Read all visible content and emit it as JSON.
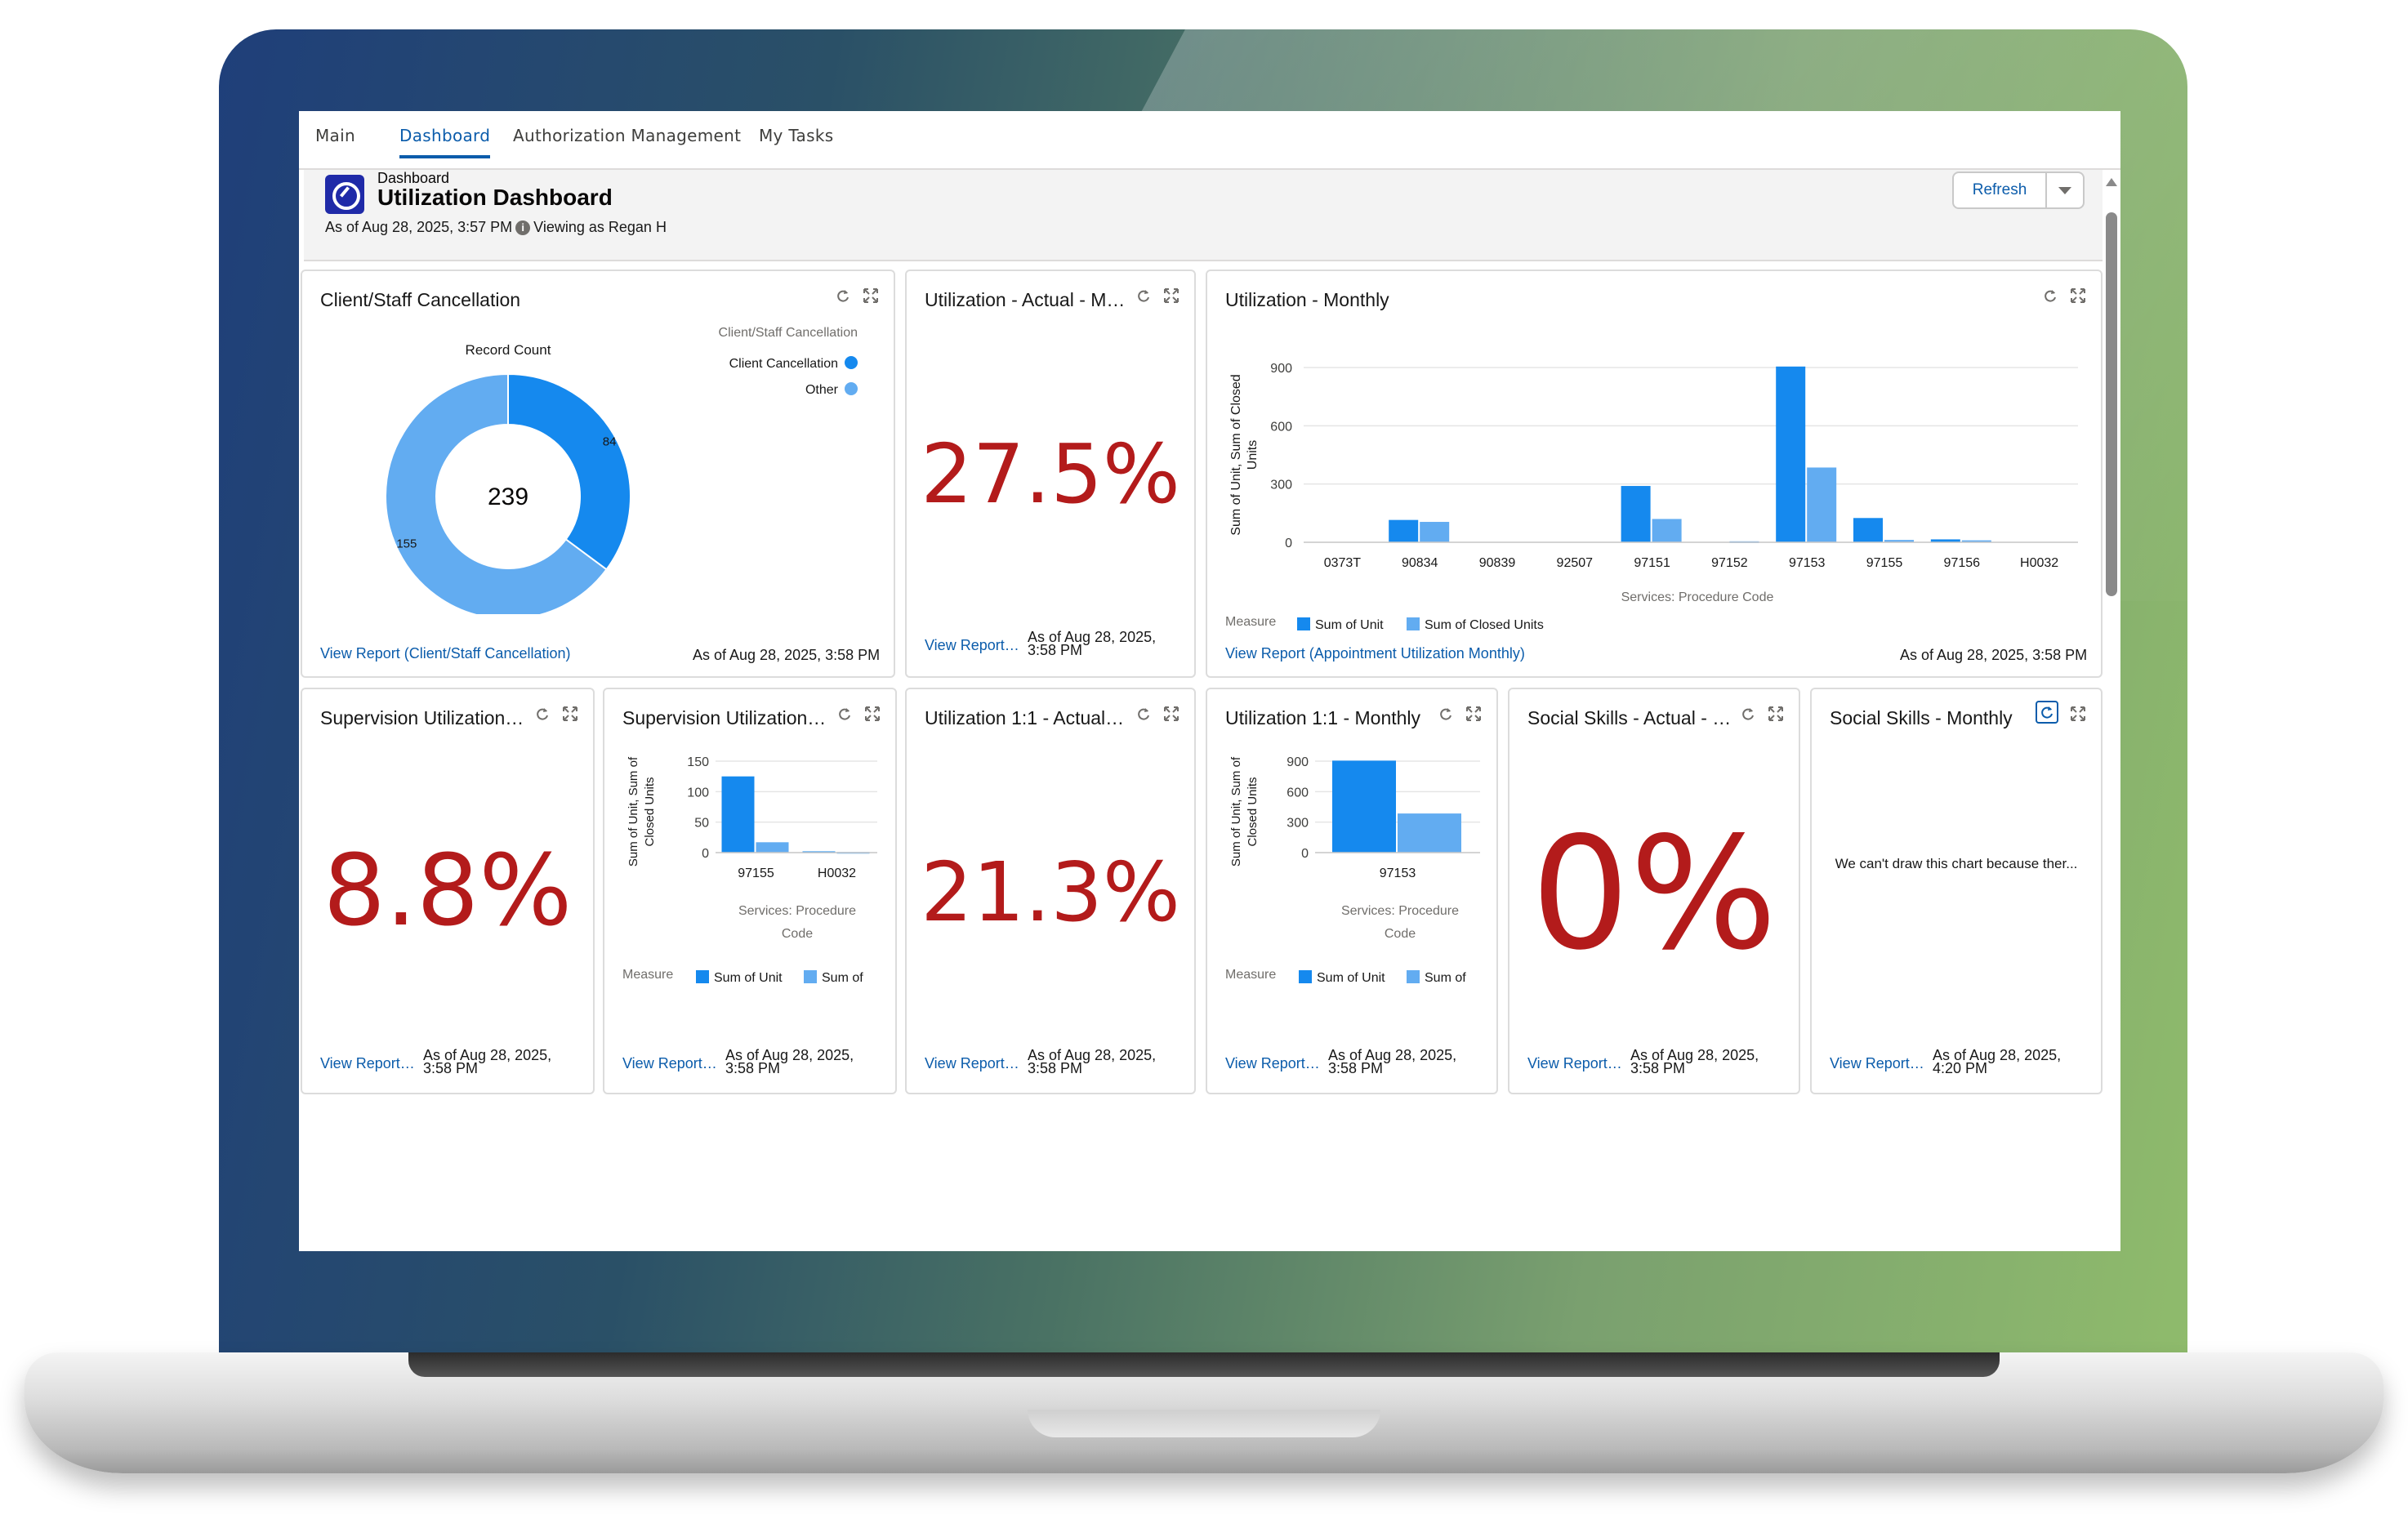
{
  "tabs": [
    {
      "label": "Main",
      "active": false
    },
    {
      "label": "Dashboard",
      "active": true
    },
    {
      "label": "Authorization Management",
      "active": false
    },
    {
      "label": "My Tasks",
      "active": false
    }
  ],
  "header": {
    "eyebrow": "Dashboard",
    "title": "Utilization Dashboard",
    "as_of": "As of Aug 28, 2025, 3:57 PM",
    "info_glyph": "i",
    "viewing_as": "Viewing as Regan H",
    "refresh_label": "Refresh"
  },
  "colors": {
    "primary_series": "#1589ee",
    "secondary_series": "#62acf1",
    "metric_red": "#b31b1b",
    "link_blue": "#0b5cab"
  },
  "cards": {
    "cancellation": {
      "title": "Client/Staff Cancellation",
      "view_report": "View Report (Client/Staff Cancellation)",
      "as_of": "As of Aug 28, 2025, 3:58 PM"
    },
    "util_actual": {
      "title": "Utilization - Actual - Mon...",
      "metric": "27.5%",
      "view_report": "View Report (...",
      "as_of_1": "As of Aug 28, 2025,",
      "as_of_2": "3:58 PM"
    },
    "util_monthly": {
      "title": "Utilization - Monthly",
      "view_report": "View Report (Appointment Utilization Monthly)",
      "as_of": "As of Aug 28, 2025, 3:58 PM"
    },
    "supervision_actual": {
      "title": "Supervision Utilization - ...",
      "metric": "8.8%",
      "view_report": "View Report (...",
      "as_of_1": "As of Aug 28, 2025,",
      "as_of_2": "3:58 PM"
    },
    "supervision_chart": {
      "title": "Supervision Utilization - ...",
      "view_report": "View Report (...",
      "as_of_1": "As of Aug 28, 2025,",
      "as_of_2": "3:58 PM"
    },
    "util_11_actual": {
      "title": "Utilization 1:1 - Actual - ...",
      "metric": "21.3%",
      "view_report": "View Report (...",
      "as_of_1": "As of Aug 28, 2025,",
      "as_of_2": "3:58 PM"
    },
    "util_11_monthly": {
      "title": "Utilization 1:1 - Monthly",
      "view_report": "View Report (...",
      "as_of_1": "As of Aug 28, 2025,",
      "as_of_2": "3:58 PM"
    },
    "social_actual": {
      "title": "Social Skills - Actual - M...",
      "metric": "0%",
      "view_report": "View Report (...",
      "as_of_1": "As of Aug 28, 2025,",
      "as_of_2": "3:58 PM"
    },
    "social_monthly": {
      "title": "Social Skills - Monthly",
      "message": "We can't draw this chart because ther...",
      "view_report": "View Report (...",
      "as_of_1": "As of Aug 28, 2025,",
      "as_of_2": "4:20 PM"
    }
  },
  "chart_data": [
    {
      "id": "cancellation",
      "type": "pie",
      "title": "Record Count",
      "center_label": "239",
      "legend_title": "Client/Staff Cancellation",
      "legend_position": "top-right",
      "slices": [
        {
          "label": "Client Cancellation",
          "value": 84,
          "display": "84",
          "color": "#1589ee"
        },
        {
          "label": "Other",
          "value": 155,
          "display": "155",
          "color": "#62acf1"
        }
      ]
    },
    {
      "id": "util_monthly",
      "type": "bar",
      "xlabel": "Services: Procedure Code",
      "ylabel_1": "Sum of Unit, Sum of Closed",
      "ylabel_2": "Units",
      "ylim": [
        0,
        900
      ],
      "yticks": [
        "0",
        "300",
        "600",
        "900"
      ],
      "legend_title": "Measure",
      "categories": [
        "0373T",
        "90834",
        "90839",
        "92507",
        "97151",
        "97152",
        "97153",
        "97155",
        "97156",
        "H0032"
      ],
      "series": [
        {
          "name": "Sum of Unit",
          "values": [
            0,
            115,
            0,
            0,
            290,
            0,
            905,
            125,
            15,
            0
          ]
        },
        {
          "name": "Sum of Closed Units",
          "values": [
            0,
            105,
            0,
            0,
            120,
            5,
            385,
            12,
            10,
            0
          ]
        }
      ]
    },
    {
      "id": "supervision_chart",
      "type": "bar",
      "xlabel_1": "Services: Procedure",
      "xlabel_2": "Code",
      "ylabel_1": "Sum of Unit, Sum of",
      "ylabel_2": "Closed Units",
      "ylim": [
        0,
        150
      ],
      "yticks": [
        "0",
        "50",
        "100",
        "150"
      ],
      "legend_title": "Measure",
      "categories": [
        "97155",
        "H0032"
      ],
      "series": [
        {
          "name": "Sum of Unit",
          "values": [
            125,
            2
          ]
        },
        {
          "name": "Sum of Closed Units",
          "values": [
            17,
            1
          ]
        }
      ],
      "legend_second_short": "Sum of"
    },
    {
      "id": "util_11_monthly",
      "type": "bar",
      "xlabel_1": "Services: Procedure",
      "xlabel_2": "Code",
      "ylabel_1": "Sum of Unit, Sum of",
      "ylabel_2": "Closed Units",
      "ylim": [
        0,
        900
      ],
      "yticks": [
        "0",
        "300",
        "600",
        "900"
      ],
      "legend_title": "Measure",
      "categories": [
        "97153"
      ],
      "series": [
        {
          "name": "Sum of Unit",
          "values": [
            905
          ]
        },
        {
          "name": "Sum of Closed Units",
          "values": [
            385
          ]
        }
      ],
      "legend_second_short": "Sum of"
    }
  ]
}
